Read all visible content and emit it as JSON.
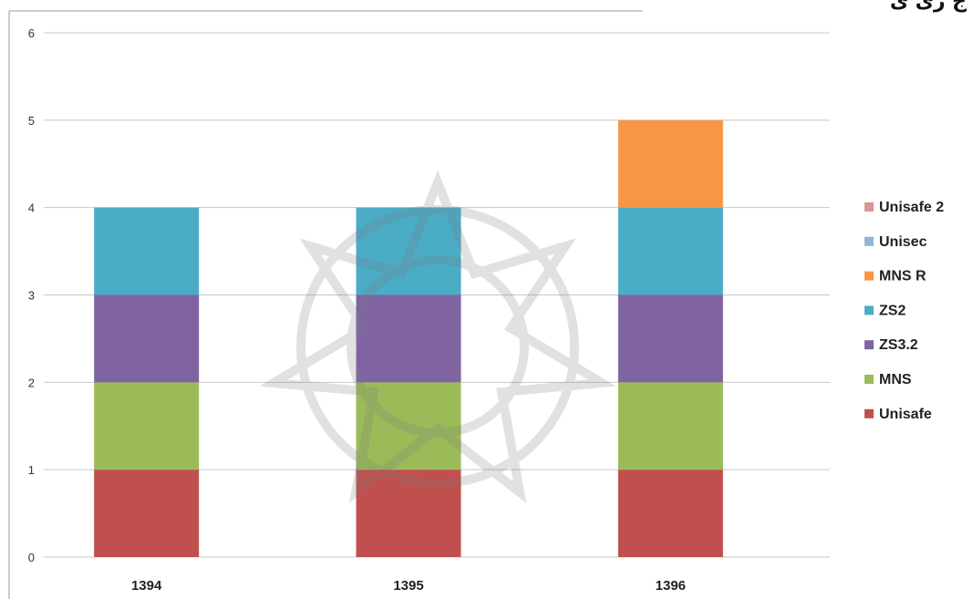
{
  "header": {
    "title_fragment": "ج ری ی"
  },
  "chart_data": {
    "type": "bar",
    "stacked": true,
    "categories": [
      "1394",
      "1395",
      "1396"
    ],
    "series": [
      {
        "name": "Unisafe",
        "color": "#c0504d",
        "values": [
          1,
          1,
          1
        ]
      },
      {
        "name": "MNS",
        "color": "#9bbb59",
        "values": [
          1,
          1,
          1
        ]
      },
      {
        "name": "ZS3.2",
        "color": "#8064a2",
        "values": [
          1,
          1,
          1
        ]
      },
      {
        "name": "ZS2",
        "color": "#4bacc6",
        "values": [
          1,
          1,
          1
        ]
      },
      {
        "name": "MNS R",
        "color": "#f79646",
        "values": [
          0,
          0,
          1
        ]
      },
      {
        "name": "Unisec",
        "color": "#95b3d7",
        "values": [
          0,
          0,
          0
        ]
      },
      {
        "name": "Unisafe 2",
        "color": "#d99694",
        "values": [
          0,
          0,
          0
        ]
      }
    ],
    "ylim": [
      0,
      6
    ],
    "yticks": [
      "0",
      "1",
      "2",
      "3",
      "4",
      "5",
      "6"
    ],
    "grid": true,
    "legend_position": "right",
    "legend_order": [
      "Unisafe 2",
      "Unisec",
      "MNS R",
      "ZS2",
      "ZS3.2",
      "MNS",
      "Unisafe"
    ]
  }
}
